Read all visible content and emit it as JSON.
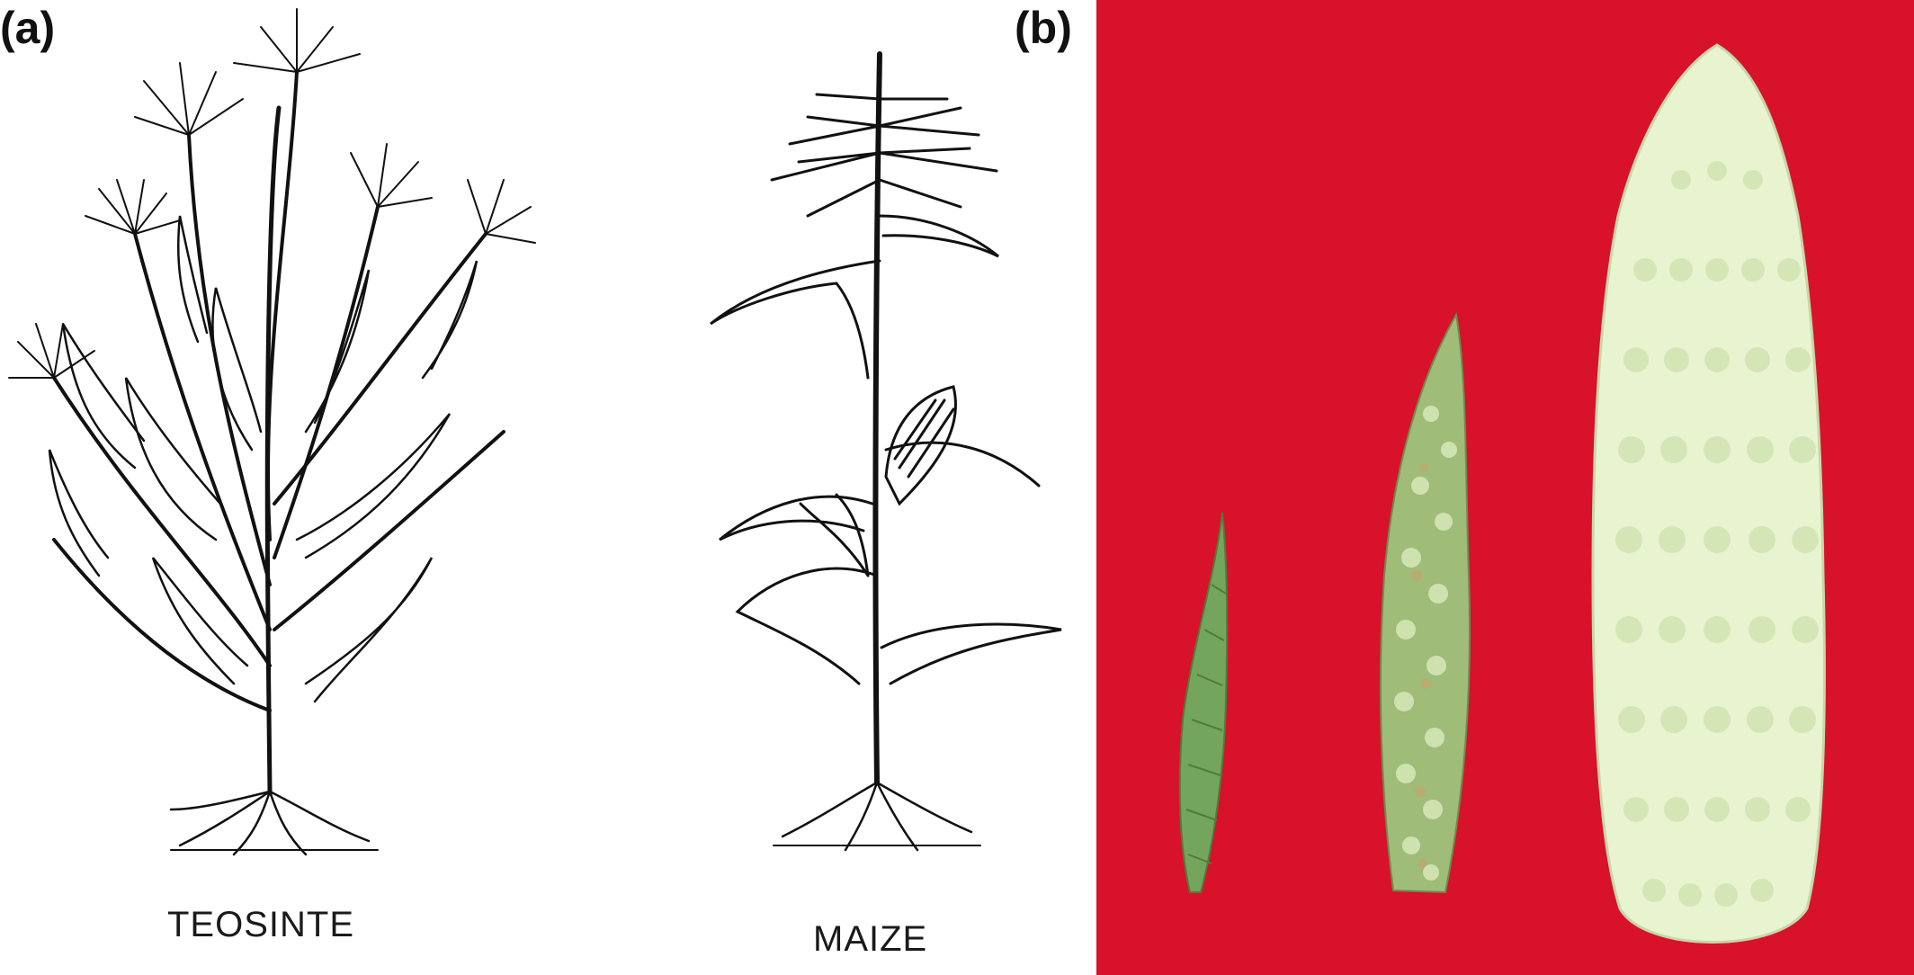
{
  "panel_a": {
    "label": "(a)",
    "plants": [
      {
        "caption": "TEOSINTE",
        "icon": "teosinte-plant-drawing"
      },
      {
        "caption": "MAIZE",
        "icon": "maize-plant-drawing"
      }
    ]
  },
  "panel_b": {
    "label": "(b)",
    "background_color": "#d8122a",
    "ears": [
      {
        "name": "teosinte-ear",
        "color": "#74a55c"
      },
      {
        "name": "intermediate-ear",
        "color": "#9fbc78"
      },
      {
        "name": "maize-ear",
        "color": "#e8f3d0"
      }
    ]
  }
}
